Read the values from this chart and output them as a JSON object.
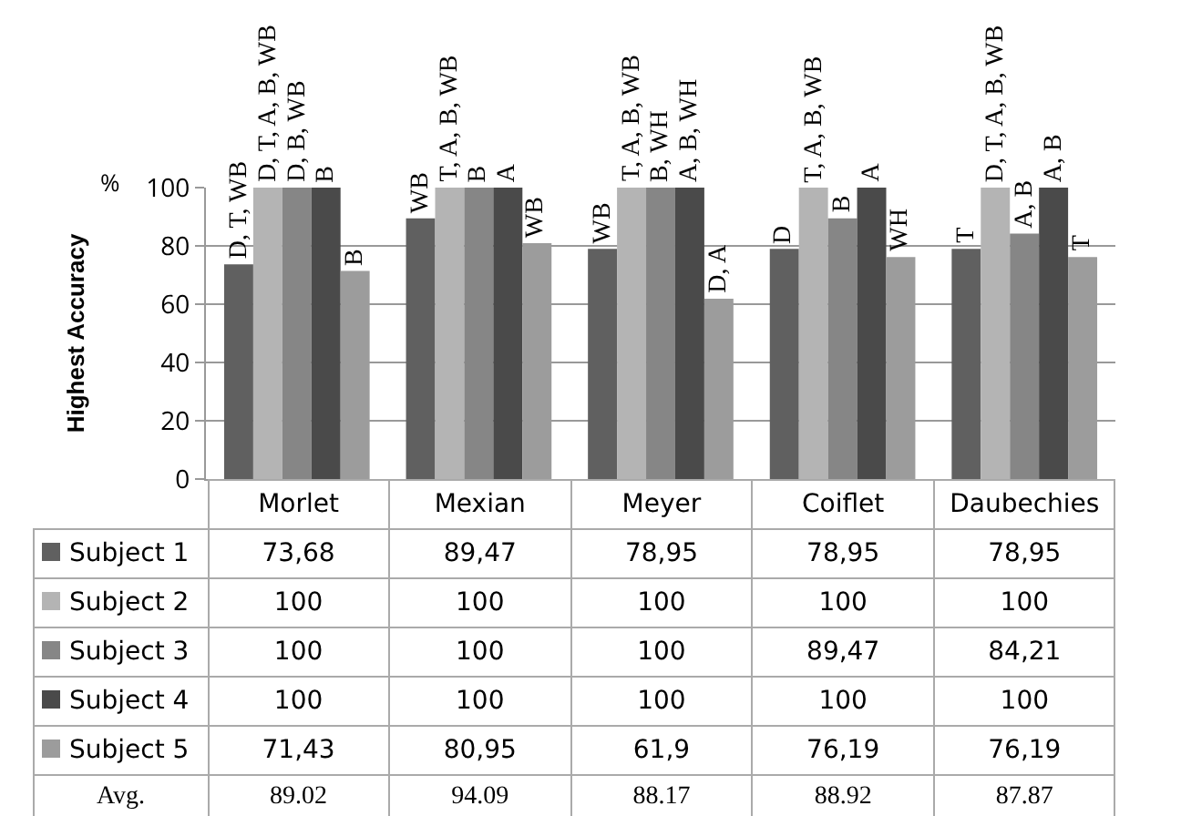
{
  "chart_data": {
    "type": "bar",
    "ylabel": "Highest Accuracy",
    "categories": [
      "Morlet",
      "Mexian",
      "Meyer",
      "Coiflet",
      "Daubechies"
    ],
    "series": [
      {
        "name": "Subject 1",
        "color": "#606060",
        "values": [
          73.68,
          89.47,
          78.95,
          78.95,
          78.95
        ],
        "value_labels": [
          "73,68",
          "89,47",
          "78,95",
          "78,95",
          "78,95"
        ]
      },
      {
        "name": "Subject 2",
        "color": "#b4b4b4",
        "values": [
          100,
          100,
          100,
          100,
          100
        ],
        "value_labels": [
          "100",
          "100",
          "100",
          "100",
          "100"
        ]
      },
      {
        "name": "Subject 3",
        "color": "#868686",
        "values": [
          100,
          100,
          100,
          89.47,
          84.21
        ],
        "value_labels": [
          "100",
          "100",
          "100",
          "89,47",
          "84,21"
        ]
      },
      {
        "name": "Subject 4",
        "color": "#4a4a4a",
        "values": [
          100,
          100,
          100,
          100,
          100
        ],
        "value_labels": [
          "100",
          "100",
          "100",
          "100",
          "100"
        ]
      },
      {
        "name": "Subject 5",
        "color": "#9c9c9c",
        "values": [
          71.43,
          80.95,
          61.9,
          76.19,
          76.19
        ],
        "value_labels": [
          "71,43",
          "80,95",
          "61,9",
          "76,19",
          "76,19"
        ]
      }
    ],
    "ylim": [
      0,
      100
    ],
    "yticks": [
      0,
      20,
      40,
      60,
      80,
      100
    ],
    "grid": "y",
    "legend": "bottom left",
    "annotations": [
      "%",
      "Avg.",
      "89.02",
      "94.09",
      "88.17",
      "88.92",
      "87.87",
      "D, T, WB",
      "D, T, A, B, WB",
      "D, B, WB",
      "B",
      "B",
      "WB",
      "T, A, B, WB",
      "B",
      "A",
      "WB",
      "WB",
      "T, A, B, WB",
      "B, WH",
      "A, B, WH",
      "D, A",
      "D",
      "T, A, B, WB",
      "B",
      "A",
      "WH",
      "T",
      "D, T, A, B, WB",
      "A, B",
      "A, B",
      "T"
    ]
  }
}
